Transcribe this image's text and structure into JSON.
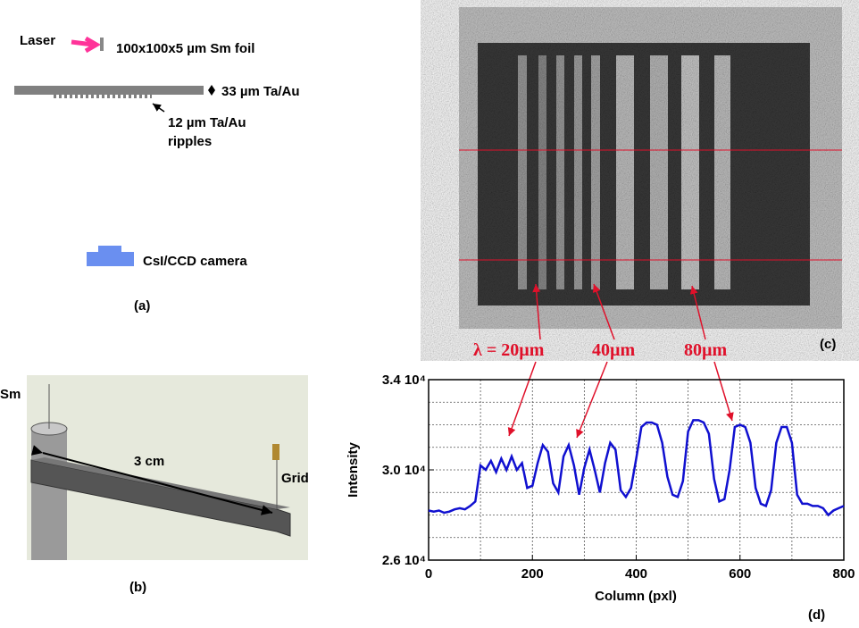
{
  "panel_a": {
    "label": "(a)",
    "laser": "Laser",
    "foil": "100x100x5 µm Sm foil",
    "substrate": "33 µm Ta/Au",
    "ripples": [
      "12 µm Ta/Au",
      "ripples"
    ],
    "camera": "CsI/CCD camera"
  },
  "panel_b": {
    "label": "(b)",
    "source": "Sm",
    "distance": "3 cm",
    "grid": "Grid"
  },
  "panel_c": {
    "label": "(c)",
    "annotations": [
      "λ = 20µm",
      "40µm",
      "80µm"
    ]
  },
  "chart_data": {
    "type": "line",
    "panel_label": "(d)",
    "xlabel": "Column (pxl)",
    "ylabel": "Intensity",
    "x": [
      0,
      10,
      20,
      30,
      40,
      50,
      60,
      70,
      80,
      90,
      100,
      110,
      120,
      130,
      140,
      150,
      160,
      170,
      180,
      190,
      200,
      210,
      220,
      230,
      240,
      250,
      260,
      270,
      280,
      290,
      300,
      310,
      320,
      330,
      340,
      350,
      360,
      370,
      380,
      390,
      400,
      410,
      420,
      430,
      440,
      450,
      460,
      470,
      480,
      490,
      500,
      510,
      520,
      530,
      540,
      550,
      560,
      570,
      580,
      590,
      600,
      610,
      620,
      630,
      640,
      650,
      660,
      670,
      680,
      690,
      700,
      710,
      720,
      730,
      740,
      750,
      760,
      770,
      780,
      790,
      800
    ],
    "series": [
      {
        "color": "#1010d0",
        "values": [
          28200,
          28150,
          28200,
          28100,
          28150,
          28250,
          28300,
          28250,
          28400,
          28600,
          30200,
          30000,
          30400,
          29900,
          30500,
          30000,
          30600,
          30000,
          30300,
          29200,
          29300,
          30300,
          31100,
          30800,
          29400,
          29000,
          30600,
          31100,
          30200,
          28900,
          30100,
          30900,
          30000,
          29000,
          30300,
          31200,
          30900,
          29100,
          28800,
          29200,
          30500,
          31900,
          32100,
          32100,
          32000,
          31200,
          29700,
          28900,
          28800,
          29500,
          31700,
          32200,
          32200,
          32100,
          31600,
          29600,
          28600,
          28700,
          30000,
          31900,
          32000,
          31900,
          31200,
          29200,
          28500,
          28400,
          29100,
          31200,
          31900,
          31900,
          31200,
          28900,
          28500,
          28500,
          28400,
          28400,
          28300,
          28000,
          28200,
          28300,
          28400
        ]
      }
    ],
    "xlim": [
      0,
      800
    ],
    "ylim": [
      26000,
      34000
    ],
    "xticks": [
      0,
      200,
      400,
      600,
      800
    ],
    "xminor": [
      100,
      300,
      500,
      700
    ],
    "yticks": [
      {
        "value": 26000,
        "label": "2.6 10⁴"
      },
      {
        "value": 30000,
        "label": "3.0 10⁴"
      },
      {
        "value": 34000,
        "label": "3.4 10⁴"
      }
    ],
    "yminor": [
      27000,
      28000,
      29000,
      31000,
      32000,
      33000
    ],
    "grid": true
  }
}
